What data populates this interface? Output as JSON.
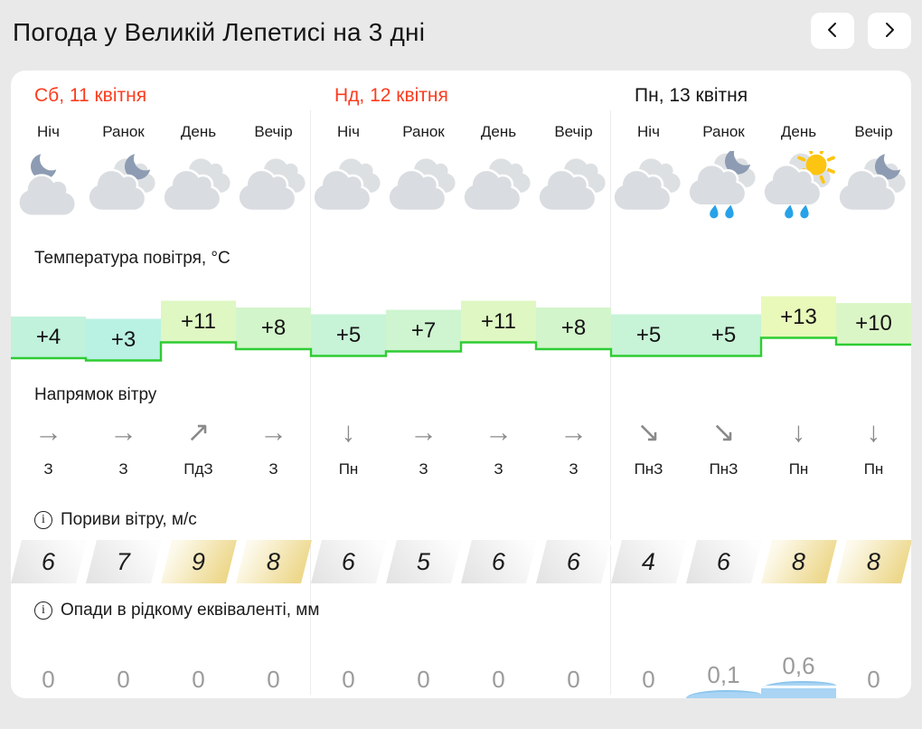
{
  "header": {
    "title": "Погода у Великій Лепетисі на 3 дні"
  },
  "icons": {
    "prev": "chevron-left",
    "next": "chevron-right",
    "info_glyph": "i"
  },
  "sections": {
    "temperature": "Температура повітря, °C",
    "wind": "Напрямок вітру",
    "gusts": "Пориви вітру, м/с",
    "precip": "Опади в рідкому еквіваленті, мм"
  },
  "days": [
    {
      "date": "Сб, 11 квітня",
      "weekend": true
    },
    {
      "date": "Нд, 12 квітня",
      "weekend": true
    },
    {
      "date": "Пн, 13 квітня",
      "weekend": false
    }
  ],
  "periods": [
    "Ніч",
    "Ранок",
    "День",
    "Вечір"
  ],
  "cells": {
    "weather_icons": [
      "cloud-moon",
      "clouds-moon",
      "clouds",
      "clouds",
      "clouds",
      "clouds",
      "clouds",
      "clouds",
      "clouds",
      "clouds-moon-rain",
      "clouds-sun-rain",
      "clouds-moon"
    ],
    "wind_arrows": [
      "→",
      "→",
      "↗",
      "→",
      "↓",
      "→",
      "→",
      "→",
      "↘",
      "↘",
      "↓",
      "↓"
    ],
    "wind_dirs": [
      "З",
      "З",
      "ПдЗ",
      "З",
      "Пн",
      "З",
      "З",
      "З",
      "ПнЗ",
      "ПнЗ",
      "Пн",
      "Пн"
    ],
    "gusts": [
      6,
      7,
      9,
      8,
      6,
      5,
      6,
      6,
      4,
      6,
      8,
      8
    ],
    "precip_labels": [
      "0",
      "0",
      "0",
      "0",
      "0",
      "0",
      "0",
      "0",
      "0",
      "0,1",
      "0,6",
      "0"
    ],
    "precip_mm": [
      0,
      0,
      0,
      0,
      0,
      0,
      0,
      0,
      0,
      0.1,
      0.6,
      0
    ]
  },
  "chart_data": {
    "type": "area",
    "title": "Температура повітря, °C",
    "categories": [
      "Сб Ніч",
      "Сб Ранок",
      "Сб День",
      "Сб Вечір",
      "Нд Ніч",
      "Нд Ранок",
      "Нд День",
      "Нд Вечір",
      "Пн Ніч",
      "Пн Ранок",
      "Пн День",
      "Пн Вечір"
    ],
    "values": [
      4,
      3,
      11,
      8,
      5,
      7,
      11,
      8,
      5,
      5,
      13,
      10
    ],
    "labels": [
      "+4",
      "+3",
      "+11",
      "+8",
      "+5",
      "+7",
      "+11",
      "+8",
      "+5",
      "+5",
      "+13",
      "+10"
    ],
    "line_color": "#2ecc33",
    "accent_red": "#fb3c1e",
    "gust_warn_color": "#edd88c",
    "precip_bar_color": "#a9d4f4"
  }
}
